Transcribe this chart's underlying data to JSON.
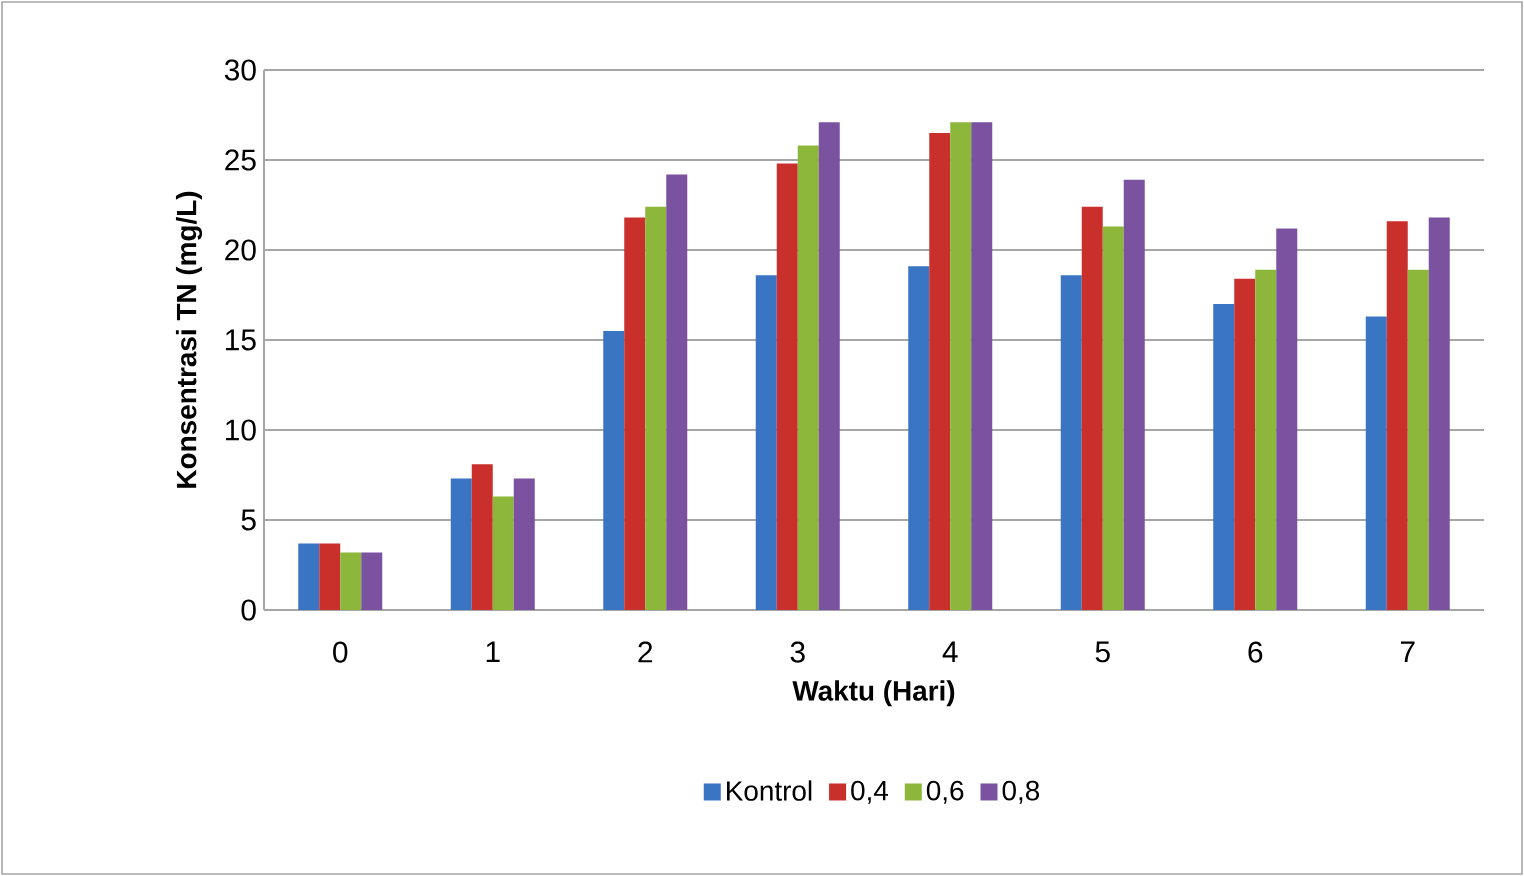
{
  "chart_data": {
    "type": "bar",
    "xlabel": "Waktu (Hari)",
    "ylabel": "Konsentrasi TN (mg/L)",
    "categories": [
      "0",
      "1",
      "2",
      "3",
      "4",
      "5",
      "6",
      "7"
    ],
    "series": [
      {
        "name": "Kontrol",
        "color": "#3a75c4",
        "values": [
          3.7,
          7.3,
          15.5,
          18.6,
          19.1,
          18.6,
          17.0,
          16.3
        ]
      },
      {
        "name": "0,4",
        "color": "#c9302c",
        "values": [
          3.7,
          8.1,
          21.8,
          24.8,
          26.5,
          22.4,
          18.4,
          21.6
        ]
      },
      {
        "name": "0,6",
        "color": "#8db73b",
        "values": [
          3.2,
          6.3,
          22.4,
          25.8,
          27.1,
          21.3,
          18.9,
          18.9
        ]
      },
      {
        "name": "0,8",
        "color": "#7a52a0",
        "values": [
          3.2,
          7.3,
          24.2,
          27.1,
          27.1,
          23.9,
          21.2,
          21.8
        ]
      }
    ],
    "ylim": [
      0,
      30
    ],
    "yticks": [
      0,
      5,
      10,
      15,
      20,
      25,
      30
    ],
    "grid": "y",
    "legend": "bottom"
  }
}
